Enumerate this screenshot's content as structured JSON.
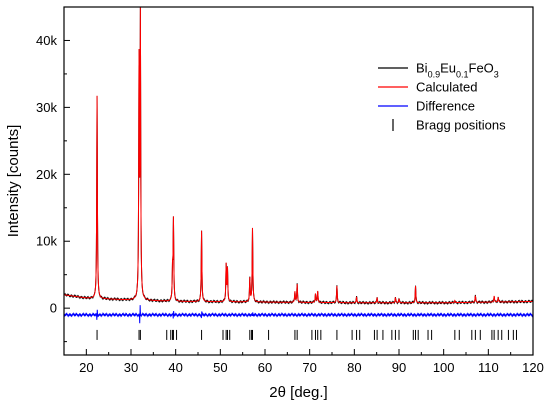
{
  "chart_data": {
    "type": "line",
    "xlabel": "2θ [deg.]",
    "ylabel": "Intensity [counts]",
    "xlim": [
      15,
      120
    ],
    "ylim": [
      -7000,
      45000
    ],
    "x_ticks": [
      20,
      30,
      40,
      50,
      60,
      70,
      80,
      90,
      100,
      110,
      120
    ],
    "y_ticks": [
      0,
      10000,
      20000,
      30000,
      40000
    ],
    "y_tick_labels": [
      "0",
      "10k",
      "20k",
      "30k",
      "40k"
    ],
    "legend": {
      "placement": "top-right",
      "items": [
        {
          "label_parts": [
            [
              "Bi",
              "n"
            ],
            [
              "0.9",
              "sub"
            ],
            [
              "Eu",
              "n"
            ],
            [
              "0.1",
              "sub"
            ],
            [
              "FeO",
              "n"
            ],
            [
              "3",
              "sub"
            ]
          ],
          "style": "line",
          "color": "#000000"
        },
        {
          "label": "Calculated",
          "style": "line",
          "color": "#ff0000"
        },
        {
          "label": "Difference",
          "style": "line",
          "color": "#0000ff"
        },
        {
          "label": "Bragg positions",
          "style": "tick",
          "color": "#000000"
        }
      ]
    },
    "background": [
      [
        15,
        2000
      ],
      [
        20,
        1500
      ],
      [
        30,
        1200
      ],
      [
        40,
        1000
      ],
      [
        60,
        900
      ],
      [
        80,
        800
      ],
      [
        100,
        800
      ],
      [
        120,
        1000
      ]
    ],
    "peaks": [
      {
        "x": 22.4,
        "height": 30300
      },
      {
        "x": 31.8,
        "height": 34500
      },
      {
        "x": 32.1,
        "height": 41200
      },
      {
        "x": 39.3,
        "height": 4500
      },
      {
        "x": 39.5,
        "height": 12000
      },
      {
        "x": 45.8,
        "height": 10600
      },
      {
        "x": 51.3,
        "height": 5500
      },
      {
        "x": 51.6,
        "height": 4800
      },
      {
        "x": 56.6,
        "height": 3500
      },
      {
        "x": 57.2,
        "height": 11000
      },
      {
        "x": 66.7,
        "height": 1600
      },
      {
        "x": 67.2,
        "height": 2700
      },
      {
        "x": 71.3,
        "height": 1300
      },
      {
        "x": 71.8,
        "height": 1700
      },
      {
        "x": 76.1,
        "height": 2500
      },
      {
        "x": 80.5,
        "height": 900
      },
      {
        "x": 85.1,
        "height": 800
      },
      {
        "x": 89.2,
        "height": 800
      },
      {
        "x": 90.0,
        "height": 600
      },
      {
        "x": 93.7,
        "height": 2500
      },
      {
        "x": 102.5,
        "height": 300
      },
      {
        "x": 107.1,
        "height": 1000
      },
      {
        "x": 111.3,
        "height": 900
      },
      {
        "x": 112.2,
        "height": 700
      }
    ],
    "difference_offset": -1000,
    "difference_spikes": [
      {
        "x": 22.4,
        "amp": 1200
      },
      {
        "x": 32.0,
        "amp": 2000
      },
      {
        "x": 39.5,
        "amp": 800
      },
      {
        "x": 45.8,
        "amp": 600
      },
      {
        "x": 57.2,
        "amp": 500
      }
    ],
    "bragg_y": -4000,
    "bragg_positions": [
      22.4,
      31.8,
      32.1,
      38.0,
      38.9,
      39.3,
      39.5,
      40.2,
      45.8,
      50.6,
      51.3,
      51.6,
      52.1,
      56.6,
      57.0,
      57.2,
      60.8,
      66.7,
      67.2,
      70.5,
      71.3,
      71.8,
      72.5,
      76.1,
      79.5,
      80.5,
      81.2,
      84.5,
      85.1,
      86.4,
      88.4,
      89.2,
      90.0,
      93.2,
      93.7,
      94.3,
      96.5,
      97.3,
      102.5,
      103.5,
      106.3,
      107.1,
      108.2,
      110.8,
      111.3,
      112.2,
      113.0,
      114.5,
      115.6,
      116.3
    ]
  }
}
